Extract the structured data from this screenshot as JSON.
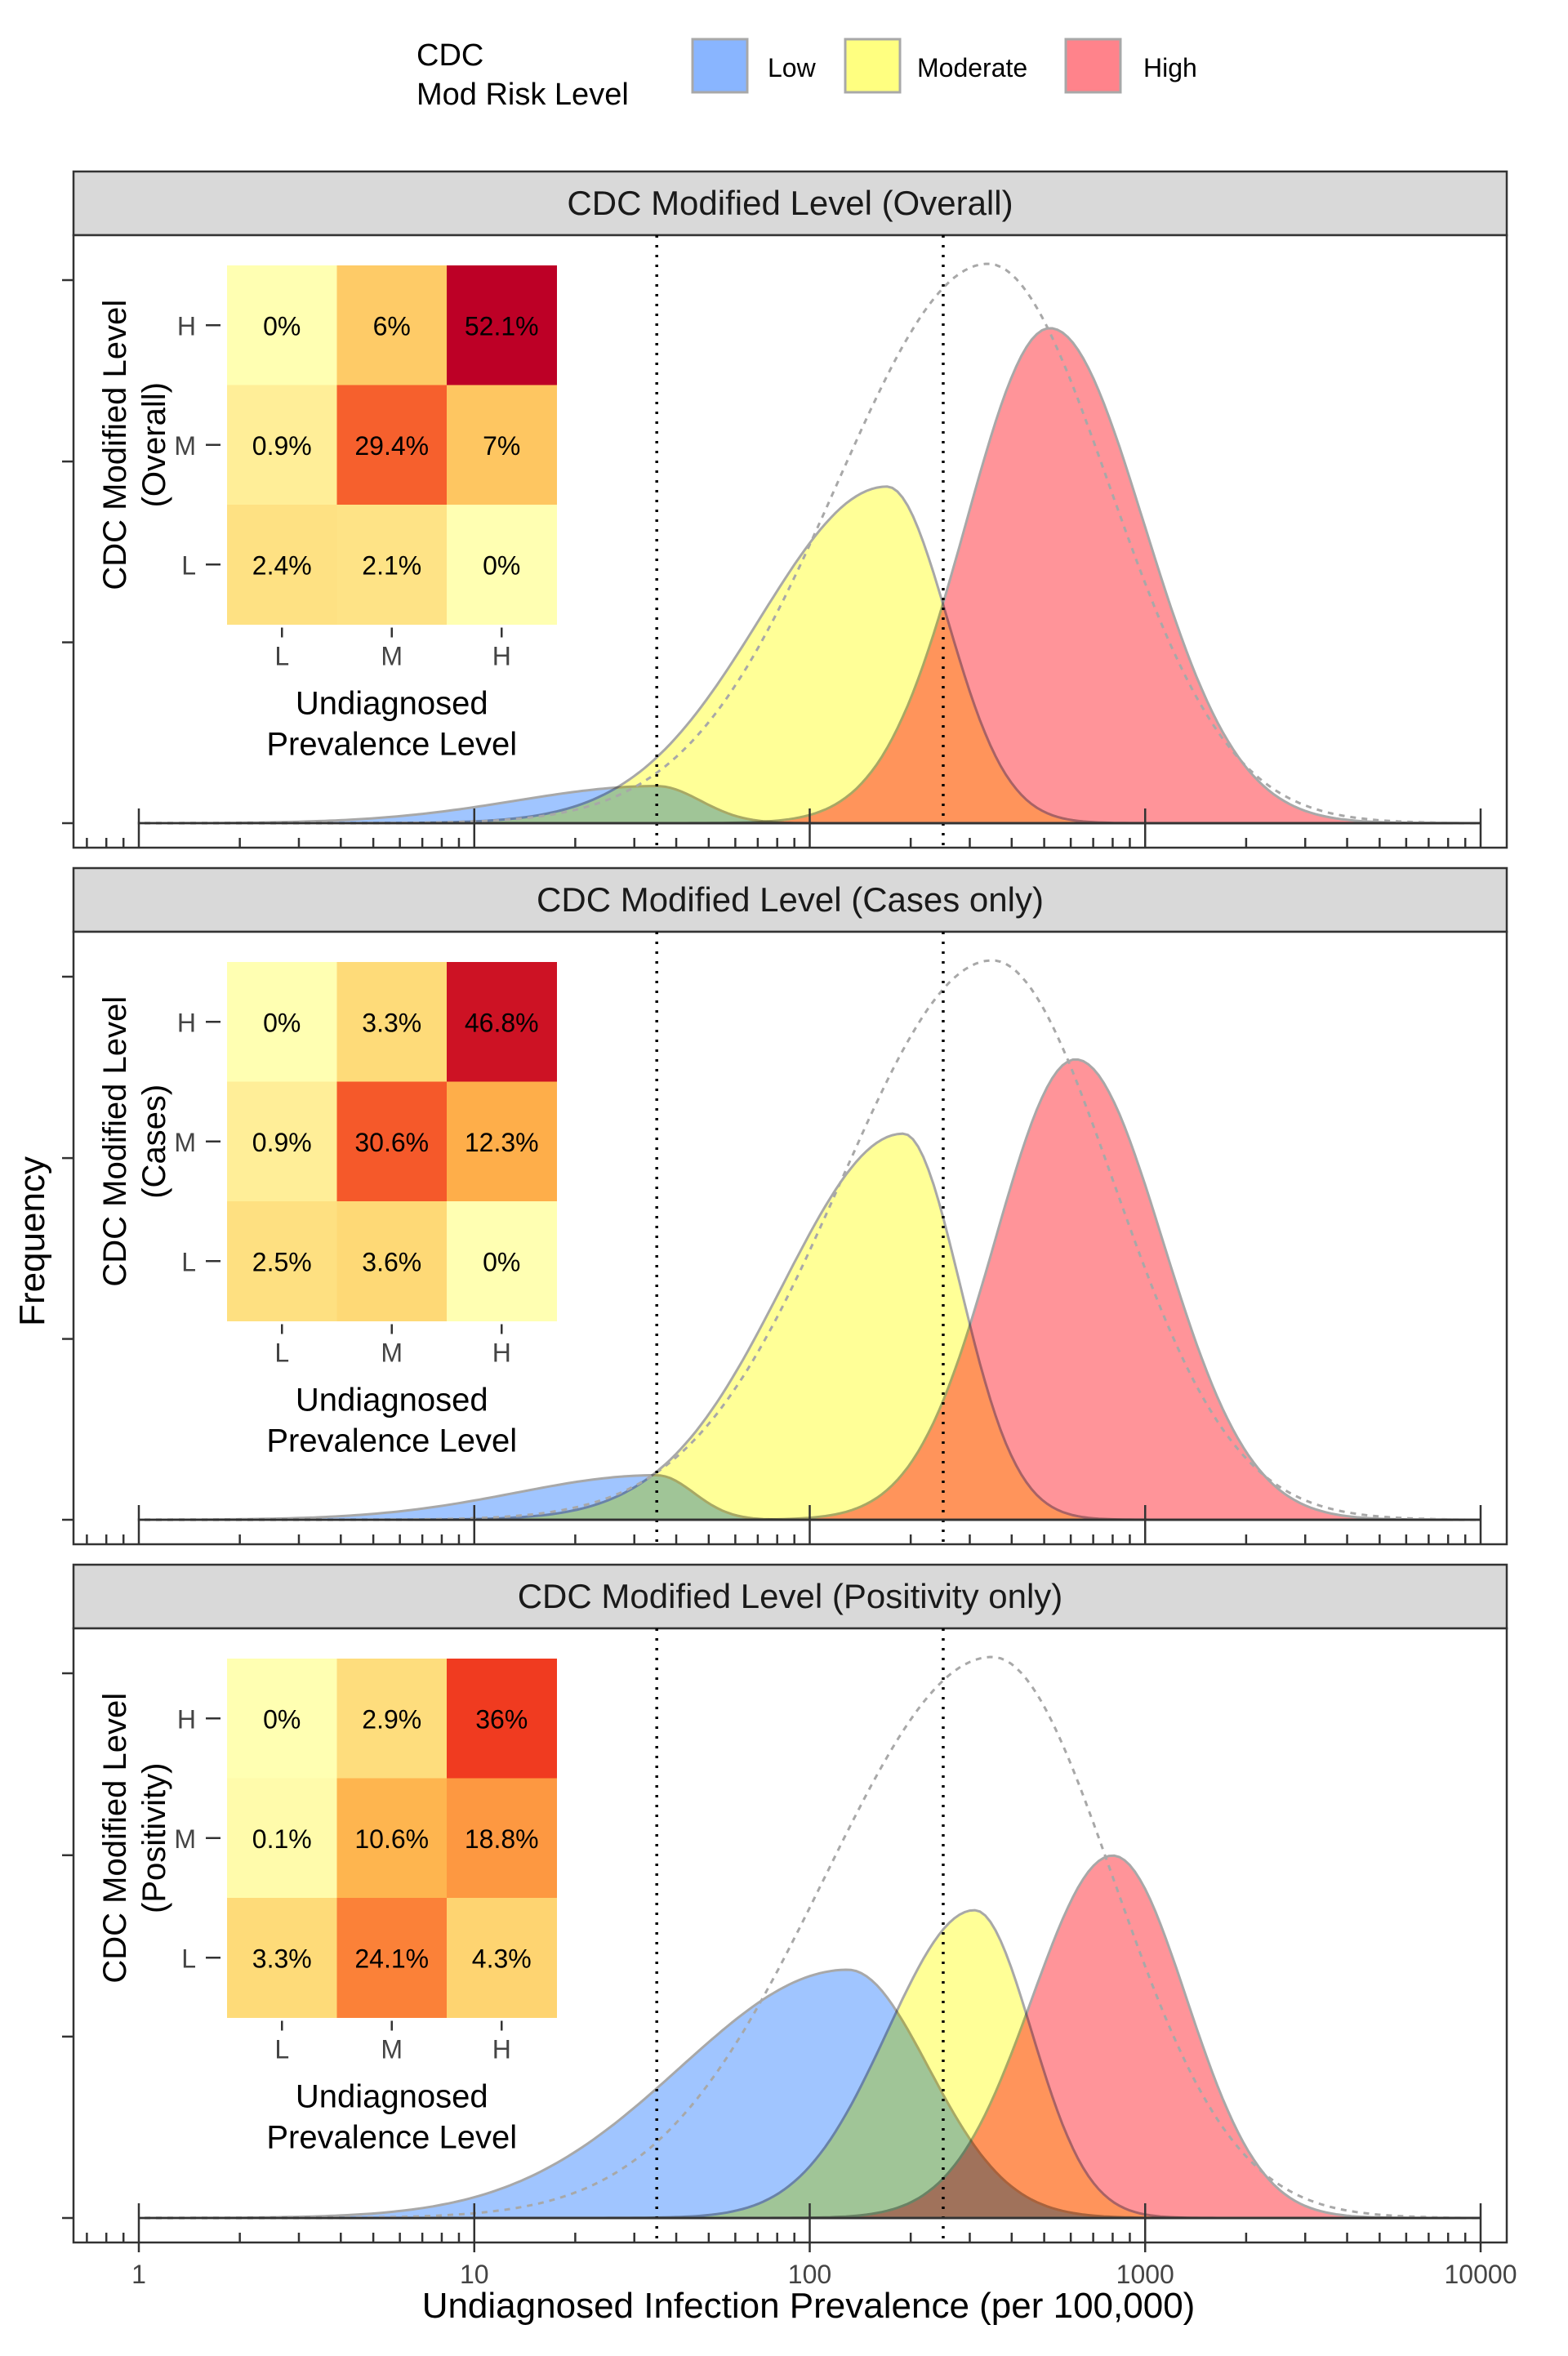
{
  "chart_data": {
    "type": "area",
    "x_scale": "log",
    "xlim": [
      1,
      10000
    ],
    "xlabel": "Undiagnosed Infection Prevalence (per 100,000)",
    "ylabel": "Frequency",
    "x_ticks": [
      "1",
      "10",
      "100",
      "1000",
      "10000"
    ],
    "thresholds": [
      35,
      250
    ],
    "grid": false,
    "legend": {
      "title": "CDC\nMod Risk Level",
      "position": "top",
      "entries": [
        {
          "label": "Low",
          "color": "#619CFF"
        },
        {
          "label": "Moderate",
          "color": "#FFFF55"
        },
        {
          "label": "High",
          "color": "#FF5A64"
        }
      ]
    },
    "colors": {
      "Low": "#8BB8FF",
      "Moderate": "#FFFF80",
      "High": "#FF7C83",
      "outline": "#A8A8A8",
      "strip": "#D9D9D9"
    },
    "heatmap_palette": [
      "#FFFFB2",
      "#FED976",
      "#FEB24C",
      "#FD8D3C",
      "#F03B20",
      "#BD0026"
    ],
    "heatmap_xlabel": "Undiagnosed\nPrevalence Level",
    "heatmap_levels": [
      "L",
      "M",
      "H"
    ],
    "panels": [
      {
        "title": "CDC Modified Level (Overall)",
        "inset_ylabel": "CDC Modified Level\n(Overall)",
        "matrix_rows": [
          "H",
          "M",
          "L"
        ],
        "matrix": [
          [
            "0%",
            "6%",
            "52.1%"
          ],
          [
            "0.9%",
            "29.4%",
            "7%"
          ],
          [
            "2.4%",
            "2.1%",
            "0%"
          ]
        ],
        "matrix_values": [
          [
            0,
            6,
            52.1
          ],
          [
            0.9,
            29.4,
            7
          ],
          [
            2.4,
            2.1,
            0
          ]
        ],
        "series": [
          {
            "name": "Low",
            "peak_x": 35,
            "peak_y": 0.075,
            "sigma_left": 0.42,
            "sigma_right": 0.13
          },
          {
            "name": "Moderate",
            "peak_x": 170,
            "peak_y": 0.68,
            "sigma_left": 0.38,
            "sigma_right": 0.18
          },
          {
            "name": "High",
            "peak_x": 520,
            "peak_y": 1.0,
            "sigma_left": 0.25,
            "sigma_right": 0.28
          }
        ],
        "total": {
          "peak_x": 340,
          "peak_y": 1.13,
          "sigma_left": 0.45,
          "sigma_right": 0.36
        }
      },
      {
        "title": "CDC Modified Level (Cases only)",
        "inset_ylabel": "CDC Modified Level\n(Cases)",
        "matrix_rows": [
          "H",
          "M",
          "L"
        ],
        "matrix": [
          [
            "0%",
            "3.3%",
            "46.8%"
          ],
          [
            "0.9%",
            "30.6%",
            "12.3%"
          ],
          [
            "2.5%",
            "3.6%",
            "0%"
          ]
        ],
        "matrix_values": [
          [
            0,
            3.3,
            46.8
          ],
          [
            0.9,
            30.6,
            12.3
          ],
          [
            2.5,
            3.6,
            0
          ]
        ],
        "series": [
          {
            "name": "Low",
            "peak_x": 35,
            "peak_y": 0.09,
            "sigma_left": 0.42,
            "sigma_right": 0.11
          },
          {
            "name": "Moderate",
            "peak_x": 190,
            "peak_y": 0.78,
            "sigma_left": 0.36,
            "sigma_right": 0.17
          },
          {
            "name": "High",
            "peak_x": 620,
            "peak_y": 0.93,
            "sigma_left": 0.24,
            "sigma_right": 0.26
          }
        ],
        "total": {
          "peak_x": 350,
          "peak_y": 1.13,
          "sigma_left": 0.45,
          "sigma_right": 0.36
        }
      },
      {
        "title": "CDC Modified Level (Positivity only)",
        "inset_ylabel": "CDC Modified Level\n(Positivity)",
        "matrix_rows": [
          "H",
          "M",
          "L"
        ],
        "matrix": [
          [
            "0%",
            "2.9%",
            "36%"
          ],
          [
            "0.1%",
            "10.6%",
            "18.8%"
          ],
          [
            "3.3%",
            "24.1%",
            "4.3%"
          ]
        ],
        "matrix_values": [
          [
            0,
            2.9,
            36
          ],
          [
            0.1,
            10.6,
            18.8
          ],
          [
            3.3,
            24.1,
            4.3
          ]
        ],
        "series": [
          {
            "name": "Low",
            "peak_x": 130,
            "peak_y": 0.5,
            "sigma_left": 0.5,
            "sigma_right": 0.24
          },
          {
            "name": "Moderate",
            "peak_x": 310,
            "peak_y": 0.62,
            "sigma_left": 0.26,
            "sigma_right": 0.17
          },
          {
            "name": "High",
            "peak_x": 800,
            "peak_y": 0.73,
            "sigma_left": 0.24,
            "sigma_right": 0.22
          }
        ],
        "total": {
          "peak_x": 350,
          "peak_y": 1.13,
          "sigma_left": 0.5,
          "sigma_right": 0.36
        }
      }
    ]
  }
}
